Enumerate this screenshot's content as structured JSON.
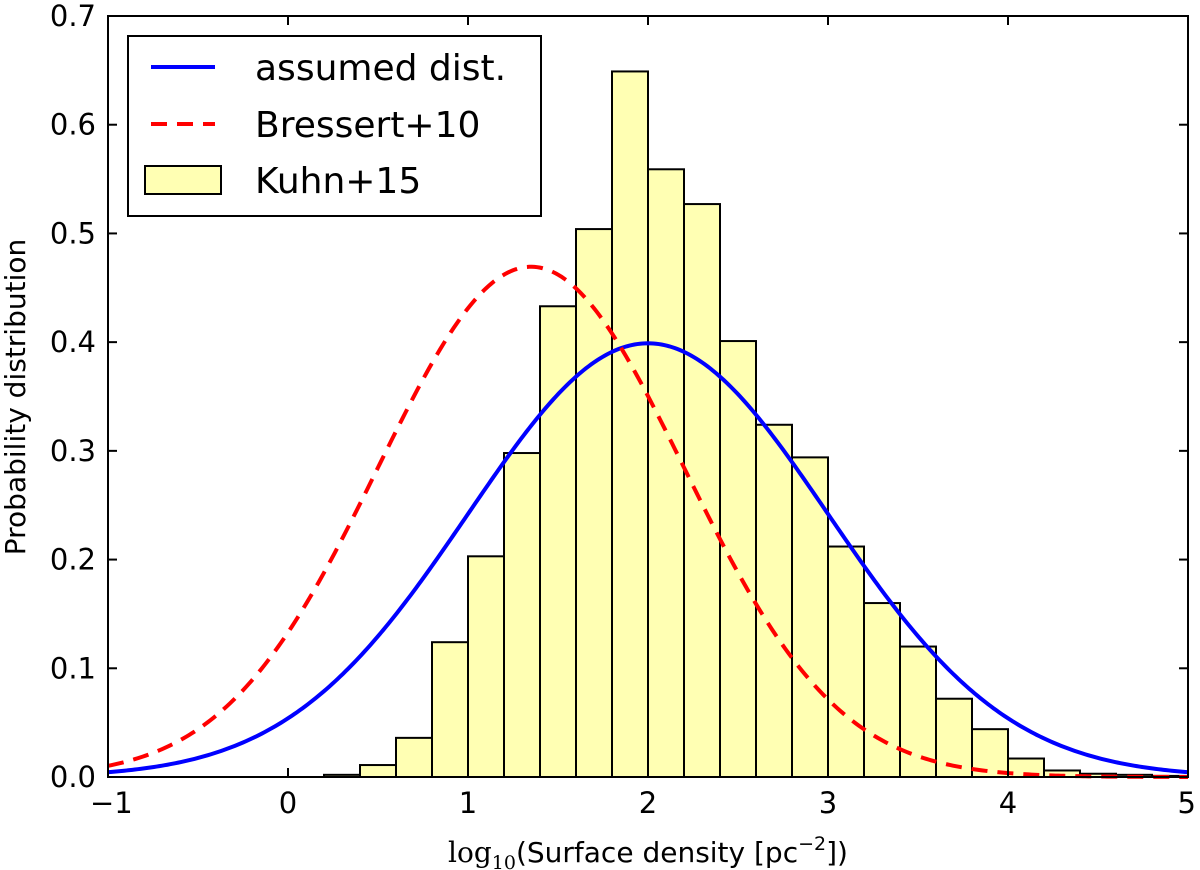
{
  "chart_data": {
    "type": "histogram+line",
    "xlabel": {
      "prefix": "log",
      "sub": "10",
      "text_before_exp": "(Surface density [pc",
      "exponent": "−2",
      "text_after_exp": "])"
    },
    "ylabel": "Probability distribution",
    "xlim": [
      -1,
      5
    ],
    "ylim": [
      0,
      0.7
    ],
    "x_ticks": [
      -1,
      0,
      1,
      2,
      3,
      4,
      5
    ],
    "x_tick_labels": [
      "−1",
      "0",
      "1",
      "2",
      "3",
      "4",
      "5"
    ],
    "y_ticks": [
      0.0,
      0.1,
      0.2,
      0.3,
      0.4,
      0.5,
      0.6,
      0.7
    ],
    "y_tick_labels": [
      "0.0",
      "0.1",
      "0.2",
      "0.3",
      "0.4",
      "0.5",
      "0.6",
      "0.7"
    ],
    "grid": false,
    "legend_position": "top-left",
    "histogram": {
      "name": "Kuhn+15",
      "fill": "#ffffb3",
      "edge": "#000000",
      "bin_width": 0.2,
      "bin_starts": [
        0.2,
        0.4,
        0.6,
        0.8,
        1.0,
        1.2,
        1.4,
        1.6,
        1.8,
        2.0,
        2.2,
        2.4,
        2.6,
        2.8,
        3.0,
        3.2,
        3.4,
        3.6,
        3.8,
        4.0,
        4.2,
        4.4,
        4.6,
        4.8
      ],
      "values": [
        0.002,
        0.011,
        0.036,
        0.124,
        0.203,
        0.298,
        0.433,
        0.504,
        0.649,
        0.559,
        0.527,
        0.401,
        0.324,
        0.294,
        0.212,
        0.16,
        0.12,
        0.072,
        0.044,
        0.017,
        0.006,
        0.003,
        0.002,
        0.001
      ]
    },
    "series": [
      {
        "name": "assumed dist.",
        "style": "solid",
        "color": "#0000ff",
        "distribution": "gaussian",
        "mean": 2.0,
        "sigma": 1.0
      },
      {
        "name": "Bressert+10",
        "style": "dashed",
        "color": "#ff0000",
        "distribution": "gaussian",
        "mean": 1.35,
        "sigma": 0.85
      }
    ]
  }
}
